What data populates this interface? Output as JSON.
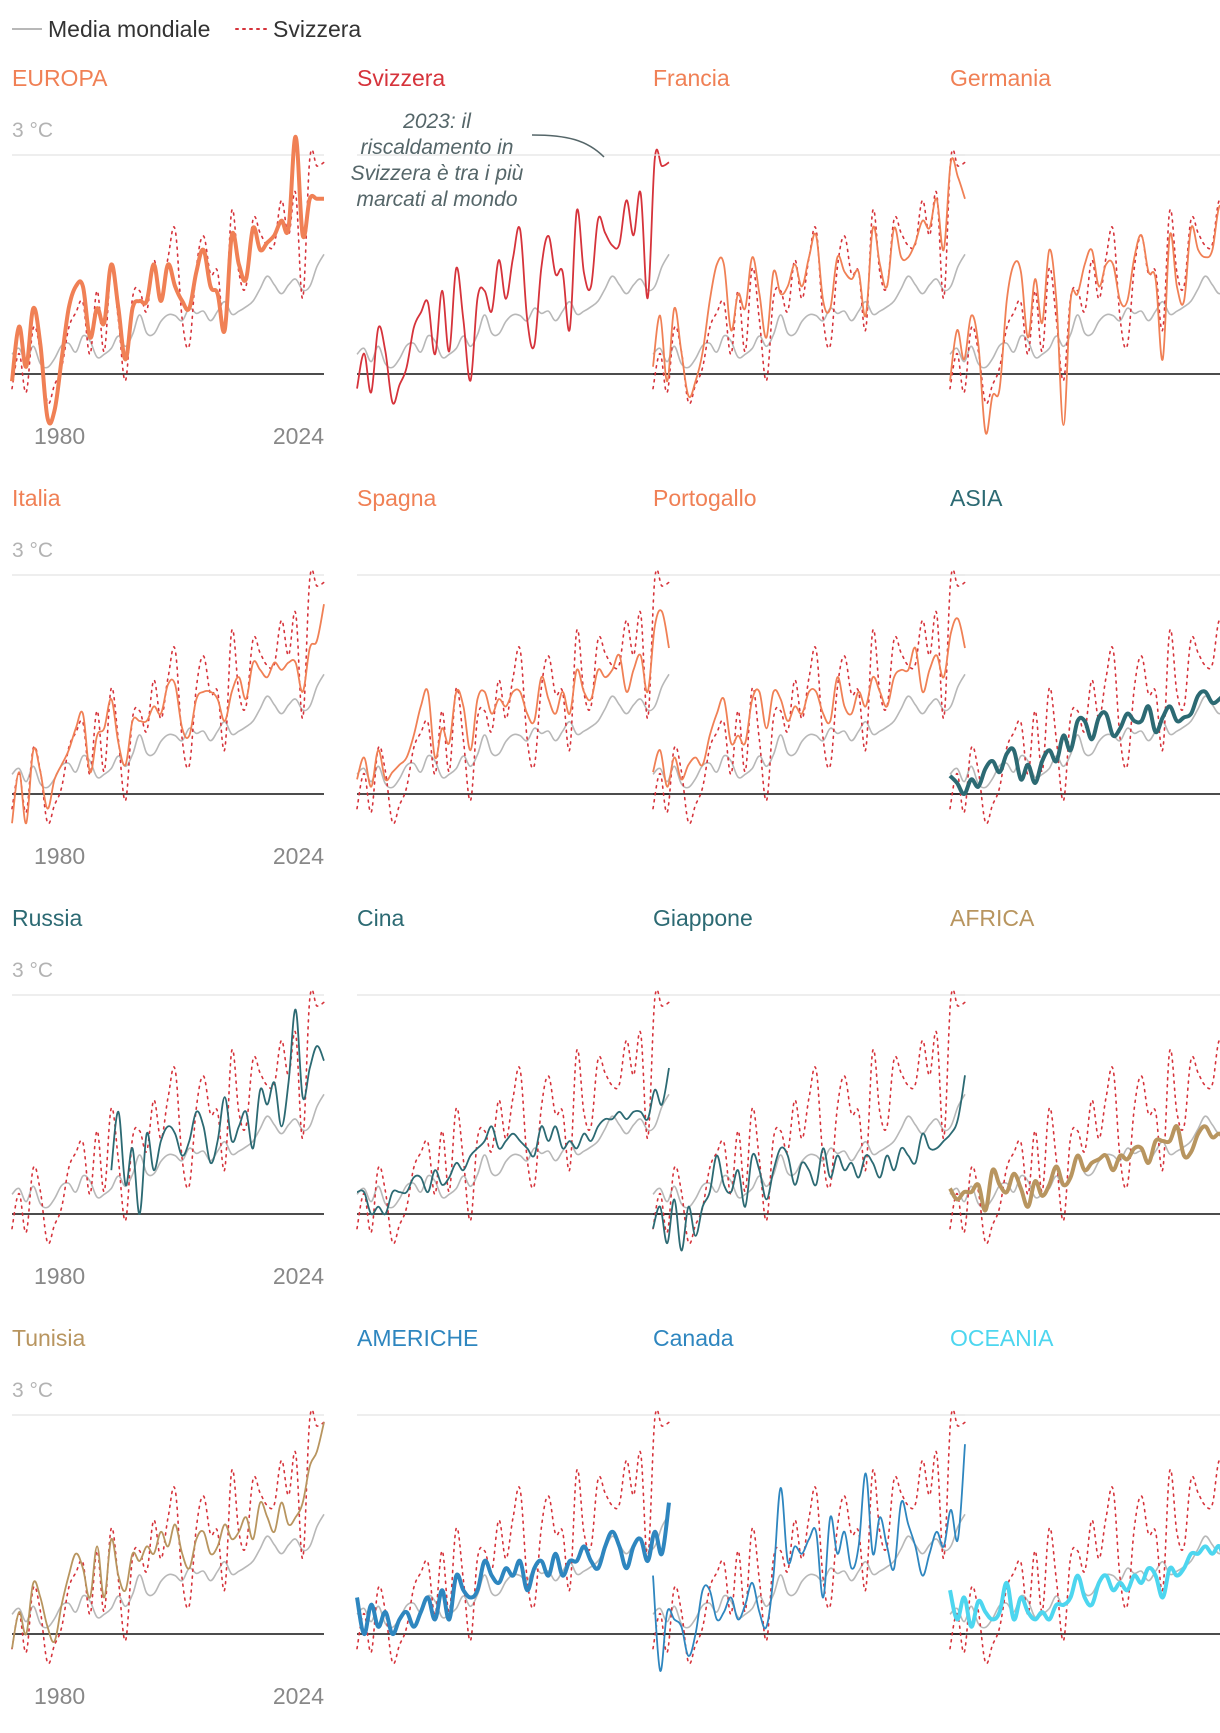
{
  "legend": [
    {
      "label": "Media mondiale",
      "key": "world",
      "color": "#b8b8b8",
      "style": "solid"
    },
    {
      "label": "Svizzera",
      "key": "switzerland",
      "color": "#d6333b",
      "style": "dotted"
    }
  ],
  "unit_label": "3 °C",
  "year_start": "1980",
  "year_end": "2024",
  "annotation": [
    "2023: il",
    "riscaldamento in",
    "Svizzera è tra i più",
    "marcati al mondo"
  ],
  "colors": {
    "europe": "#f08055",
    "switzerland": "#d6333b",
    "asia": "#2c6a73",
    "africa": "#b8955f",
    "americas": "#2e86bf",
    "oceania": "#4dd6ef",
    "world": "#b8b8b8",
    "baseline": "#111111",
    "gridline": "#e3e3e3"
  },
  "chart_data": {
    "type": "line",
    "x_start": 1980,
    "x_end": 2024,
    "ylim": [
      -0.6,
      3.2
    ],
    "world": [
      0.27,
      0.35,
      0.17,
      0.38,
      0.14,
      0.09,
      0.21,
      0.39,
      0.42,
      0.3,
      0.52,
      0.45,
      0.23,
      0.27,
      0.35,
      0.52,
      0.38,
      0.54,
      0.81,
      0.56,
      0.55,
      0.72,
      0.81,
      0.8,
      0.73,
      0.9,
      0.83,
      0.86,
      0.73,
      0.86,
      0.99,
      0.82,
      0.86,
      0.92,
      1.0,
      1.17,
      1.34,
      1.22,
      1.1,
      1.22,
      1.3,
      1.15,
      1.2,
      1.47,
      1.64
    ],
    "switzerland": [
      -0.2,
      0.28,
      -0.25,
      0.63,
      0.31,
      -0.39,
      -0.15,
      0.09,
      0.63,
      0.84,
      0.98,
      0.27,
      1.14,
      0.31,
      1.45,
      0.74,
      -0.09,
      1.04,
      1.14,
      0.86,
      1.56,
      1.03,
      1.59,
      1.98,
      0.75,
      0.39,
      1.46,
      1.89,
      1.37,
      1.4,
      0.61,
      2.24,
      1.39,
      1.2,
      2.12,
      1.93,
      1.76,
      1.78,
      2.38,
      1.9,
      2.48,
      1.04,
      2.95,
      2.85,
      2.9
    ],
    "series": [
      {
        "name": "EUROPA",
        "group": "europe",
        "bold": true,
        "values": [
          -0.1,
          0.65,
          0.1,
          0.9,
          0.4,
          -0.6,
          -0.5,
          0.2,
          0.9,
          1.2,
          1.2,
          0.5,
          0.9,
          0.7,
          1.5,
          0.9,
          0.2,
          0.9,
          1.0,
          1.0,
          1.5,
          1.0,
          1.5,
          1.2,
          1.0,
          0.9,
          1.4,
          1.7,
          1.2,
          1.1,
          0.6,
          1.9,
          1.5,
          1.3,
          2.0,
          1.7,
          1.8,
          1.9,
          2.1,
          2.0,
          3.25,
          1.9,
          2.4,
          2.4,
          2.4
        ]
      },
      {
        "name": "Svizzera",
        "group": "switzerland",
        "bold": false,
        "values": [
          -0.2,
          0.28,
          -0.25,
          0.63,
          0.31,
          -0.39,
          -0.15,
          0.09,
          0.63,
          0.84,
          0.98,
          0.27,
          1.14,
          0.31,
          1.45,
          0.74,
          -0.09,
          1.04,
          1.14,
          0.86,
          1.56,
          1.03,
          1.59,
          1.98,
          0.75,
          0.39,
          1.46,
          1.89,
          1.37,
          1.4,
          0.61,
          2.24,
          1.39,
          1.2,
          2.12,
          1.93,
          1.76,
          1.78,
          2.38,
          1.9,
          2.48,
          1.04,
          2.95,
          2.85,
          2.9
        ]
      },
      {
        "name": "Francia",
        "group": "europe",
        "bold": false,
        "values": [
          0.1,
          0.8,
          -0.1,
          0.9,
          0.3,
          -0.3,
          -0.1,
          0.3,
          1.0,
          1.5,
          1.5,
          0.6,
          1.1,
          0.9,
          1.6,
          1.1,
          0.5,
          1.4,
          1.1,
          1.2,
          1.5,
          1.2,
          1.6,
          1.9,
          1.0,
          0.9,
          1.6,
          1.4,
          1.3,
          1.4,
          0.8,
          2.0,
          1.5,
          1.2,
          2.0,
          1.6,
          1.6,
          1.8,
          2.1,
          2.0,
          2.4,
          1.7,
          2.9,
          2.7,
          2.4
        ]
      },
      {
        "name": "Germania",
        "group": "europe",
        "bold": false,
        "values": [
          -0.1,
          0.6,
          0.2,
          0.8,
          0.4,
          -0.8,
          -0.3,
          -0.2,
          1.0,
          1.5,
          1.4,
          0.5,
          1.3,
          0.7,
          1.7,
          1.0,
          -0.7,
          1.0,
          1.1,
          1.5,
          1.7,
          1.2,
          1.5,
          1.5,
          1.0,
          1.0,
          1.6,
          1.9,
          1.4,
          1.3,
          0.2,
          1.9,
          1.2,
          1.0,
          2.0,
          1.7,
          1.6,
          1.7,
          2.3,
          2.0,
          2.3,
          1.4,
          2.6,
          2.7,
          2.9
        ]
      },
      {
        "name": "Italia",
        "group": "europe",
        "bold": false,
        "values": [
          -0.4,
          0.3,
          -0.4,
          0.6,
          0.3,
          -0.2,
          0.2,
          0.4,
          0.6,
          0.9,
          1.1,
          0.3,
          0.8,
          0.9,
          1.3,
          0.7,
          0.4,
          1.0,
          1.0,
          1.0,
          1.2,
          1.1,
          1.5,
          1.5,
          0.9,
          0.8,
          1.3,
          1.4,
          1.4,
          1.3,
          1.0,
          1.4,
          1.6,
          1.3,
          1.8,
          1.7,
          1.6,
          1.8,
          1.7,
          1.8,
          1.8,
          1.4,
          2.0,
          2.1,
          2.6
        ]
      },
      {
        "name": "Spagna",
        "group": "europe",
        "bold": false,
        "values": [
          0.2,
          0.5,
          0.1,
          0.6,
          0.2,
          0.3,
          0.4,
          0.5,
          0.8,
          1.2,
          1.4,
          0.5,
          0.9,
          0.7,
          1.4,
          1.2,
          0.6,
          1.3,
          1.4,
          1.1,
          1.3,
          1.2,
          1.4,
          1.4,
          1.1,
          1.0,
          1.6,
          1.3,
          1.1,
          1.4,
          1.1,
          1.7,
          1.4,
          1.3,
          1.7,
          1.6,
          1.7,
          1.9,
          1.4,
          1.7,
          1.9,
          1.4,
          2.3,
          2.5,
          2.0
        ]
      },
      {
        "name": "Portogallo",
        "group": "europe",
        "bold": false,
        "values": [
          0.3,
          0.6,
          0.1,
          0.5,
          0.2,
          0.4,
          0.5,
          0.4,
          0.8,
          1.1,
          1.3,
          0.7,
          0.8,
          0.7,
          1.3,
          1.4,
          0.9,
          1.4,
          1.3,
          1.0,
          1.2,
          1.1,
          1.4,
          1.4,
          1.1,
          1.0,
          1.6,
          1.2,
          1.1,
          1.4,
          1.2,
          1.6,
          1.4,
          1.2,
          1.6,
          1.7,
          1.7,
          2.0,
          1.4,
          1.7,
          1.9,
          1.6,
          2.2,
          2.4,
          2.0
        ]
      },
      {
        "name": "ASIA",
        "group": "asia",
        "bold": true,
        "values": [
          0.25,
          0.15,
          0.0,
          0.2,
          0.1,
          0.35,
          0.45,
          0.3,
          0.55,
          0.6,
          0.2,
          0.4,
          0.15,
          0.45,
          0.6,
          0.45,
          0.8,
          0.6,
          1.0,
          1.0,
          0.75,
          1.05,
          1.1,
          0.8,
          0.9,
          1.1,
          1.0,
          1.0,
          1.2,
          0.85,
          1.05,
          1.2,
          1.0,
          1.05,
          1.1,
          1.35,
          1.4,
          1.25,
          1.3,
          1.4,
          1.5,
          1.55,
          1.55,
          1.75,
          1.9
        ]
      },
      {
        "name": "Russia",
        "group": "asia",
        "bold": false,
        "values": [
          null,
          null,
          null,
          null,
          null,
          null,
          null,
          null,
          null,
          null,
          null,
          null,
          null,
          null,
          0.6,
          1.4,
          0.4,
          0.9,
          0.0,
          1.1,
          0.6,
          1.0,
          1.2,
          1.1,
          0.8,
          1.0,
          1.4,
          1.2,
          0.7,
          1.0,
          1.6,
          1.0,
          1.2,
          1.4,
          0.9,
          1.7,
          1.5,
          1.8,
          1.2,
          1.8,
          2.8,
          1.6,
          2.0,
          2.3,
          2.1
        ]
      },
      {
        "name": "Cina",
        "group": "asia",
        "bold": false,
        "values": [
          0.3,
          0.3,
          0.0,
          0.1,
          0.0,
          0.3,
          0.3,
          0.3,
          0.5,
          0.5,
          0.3,
          0.6,
          0.4,
          0.5,
          0.7,
          0.6,
          0.8,
          0.9,
          1.0,
          1.2,
          0.9,
          1.0,
          1.1,
          1.0,
          0.9,
          0.8,
          1.2,
          1.0,
          1.2,
          0.9,
          1.0,
          0.9,
          1.1,
          1.0,
          1.2,
          1.3,
          1.3,
          1.4,
          1.3,
          1.4,
          1.4,
          1.3,
          1.7,
          1.5,
          2.0
        ]
      },
      {
        "name": "Giappone",
        "group": "asia",
        "bold": false,
        "values": [
          -0.2,
          0.1,
          -0.4,
          0.2,
          -0.5,
          0.1,
          -0.3,
          0.1,
          0.3,
          0.8,
          0.4,
          0.3,
          0.6,
          0.1,
          0.8,
          0.6,
          0.2,
          0.6,
          0.9,
          0.8,
          0.4,
          0.7,
          0.6,
          0.4,
          0.9,
          0.5,
          0.8,
          0.6,
          0.7,
          0.5,
          0.8,
          0.7,
          0.5,
          0.8,
          0.6,
          0.9,
          0.8,
          0.7,
          1.1,
          0.9,
          0.9,
          1.0,
          1.1,
          1.3,
          1.9
        ]
      },
      {
        "name": "AFRICA",
        "group": "africa",
        "bold": true,
        "values": [
          0.35,
          0.2,
          0.3,
          0.3,
          0.4,
          0.05,
          0.6,
          0.4,
          0.3,
          0.55,
          0.35,
          0.1,
          0.45,
          0.25,
          0.4,
          0.65,
          0.4,
          0.5,
          0.8,
          0.6,
          0.7,
          0.75,
          0.8,
          0.6,
          0.8,
          0.75,
          0.9,
          0.9,
          0.7,
          1.0,
          1.0,
          1.0,
          1.2,
          0.8,
          0.85,
          1.1,
          1.2,
          1.05,
          1.1,
          1.0,
          1.1,
          1.2,
          1.4,
          1.4,
          1.7
        ]
      },
      {
        "name": "Tunisia",
        "group": "africa",
        "bold": false,
        "values": [
          -0.2,
          0.3,
          0.0,
          0.7,
          0.5,
          0.1,
          -0.1,
          0.4,
          0.8,
          1.1,
          0.9,
          0.5,
          1.2,
          0.5,
          1.3,
          0.8,
          0.6,
          1.1,
          1.0,
          1.2,
          1.1,
          1.4,
          1.2,
          1.5,
          1.1,
          0.9,
          1.3,
          1.4,
          1.1,
          1.2,
          1.5,
          1.3,
          1.4,
          1.6,
          1.3,
          1.8,
          1.6,
          1.4,
          1.8,
          1.5,
          1.6,
          1.8,
          2.3,
          2.5,
          2.9
        ]
      },
      {
        "name": "AMERICHE",
        "group": "americas",
        "bold": true,
        "values": [
          0.5,
          0.0,
          0.4,
          0.1,
          0.3,
          0.0,
          0.2,
          0.3,
          0.1,
          0.3,
          0.5,
          0.2,
          0.6,
          0.2,
          0.8,
          0.6,
          0.5,
          0.6,
          1.0,
          0.8,
          0.7,
          0.9,
          0.8,
          1.0,
          0.6,
          0.9,
          1.0,
          0.8,
          1.1,
          0.8,
          1.0,
          1.0,
          1.2,
          1.0,
          0.9,
          1.2,
          1.4,
          1.2,
          0.9,
          1.2,
          1.3,
          1.0,
          1.4,
          1.1,
          1.8
        ]
      },
      {
        "name": "Canada",
        "group": "americas",
        "bold": false,
        "values": [
          0.8,
          -0.5,
          0.3,
          0.2,
          0.1,
          -0.3,
          0.0,
          0.6,
          0.6,
          0.2,
          0.3,
          0.5,
          0.2,
          0.4,
          0.7,
          0.3,
          0.1,
          0.8,
          2.0,
          1.0,
          1.2,
          1.1,
          1.3,
          1.4,
          0.5,
          1.6,
          1.1,
          1.4,
          0.9,
          1.2,
          2.2,
          1.1,
          1.6,
          1.2,
          0.9,
          1.8,
          1.5,
          1.2,
          0.8,
          1.1,
          1.4,
          1.2,
          1.7,
          1.3,
          2.6
        ]
      },
      {
        "name": "OCEANIA",
        "group": "oceania",
        "bold": true,
        "values": [
          0.6,
          0.2,
          0.5,
          0.1,
          0.45,
          0.3,
          0.2,
          0.3,
          0.7,
          0.2,
          0.5,
          0.3,
          0.2,
          0.3,
          0.2,
          0.4,
          0.4,
          0.5,
          0.8,
          0.5,
          0.4,
          0.7,
          0.8,
          0.6,
          0.7,
          0.6,
          0.8,
          0.7,
          0.9,
          0.8,
          0.5,
          0.9,
          0.8,
          0.9,
          1.1,
          1.1,
          1.2,
          1.1,
          1.2,
          0.9,
          0.9,
          0.9,
          0.9,
          1.0,
          1.3
        ]
      }
    ]
  }
}
